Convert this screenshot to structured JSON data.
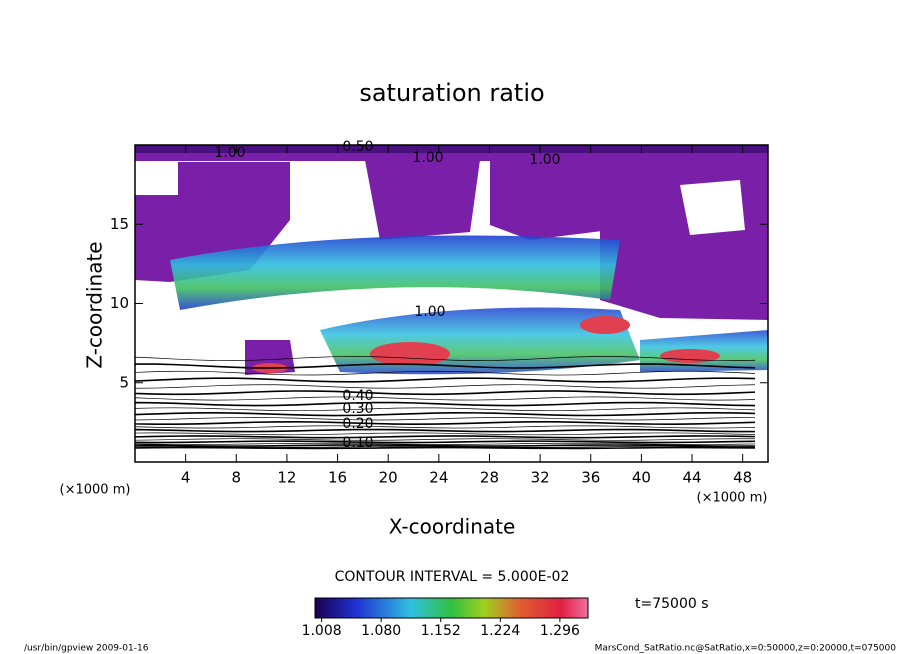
{
  "chart_data": {
    "type": "contour",
    "title": "saturation ratio",
    "x_label": "X-coordinate",
    "y_label": "Z-coordinate",
    "x_unit": "(×1000 m)",
    "y_unit": "(×1000 m)",
    "xlim": [
      0,
      50
    ],
    "xticks": [
      4,
      8,
      12,
      16,
      20,
      24,
      28,
      32,
      36,
      40,
      44,
      48
    ],
    "ylim": [
      0,
      20
    ],
    "yticks": [
      5,
      10,
      15
    ],
    "contour_labels": [
      {
        "value": 0.1,
        "label": "0.10"
      },
      {
        "value": 0.2,
        "label": "0.20"
      },
      {
        "value": 0.3,
        "label": "0.30"
      },
      {
        "value": 0.4,
        "label": "0.40"
      },
      {
        "value": 0.5,
        "label": "0.50"
      },
      {
        "value": 1,
        "label": "1.00"
      },
      {
        "value": 1,
        "label": "1.00"
      },
      {
        "value": 1,
        "label": "1.00"
      },
      {
        "value": 1,
        "label": "1.00"
      }
    ],
    "contour_interval": "CONTOUR INTERVAL = 5.000E-02",
    "time_label": "t=75000 s",
    "clim": [
      1.0,
      1.33
    ],
    "cticks": [
      {
        "value": 1.008,
        "label": "1.008"
      },
      {
        "value": 1.08,
        "label": "1.080"
      },
      {
        "value": 1.152,
        "label": "1.152"
      },
      {
        "value": 1.224,
        "label": "1.224"
      },
      {
        "value": 1.296,
        "label": "1.296"
      }
    ],
    "footer_left": "/usr/bin/gpview  2009-01-16",
    "footer_right": "MarsCond_SatRatio.nc@SatRatio,x=0:50000,z=0:20000,t=075000"
  }
}
